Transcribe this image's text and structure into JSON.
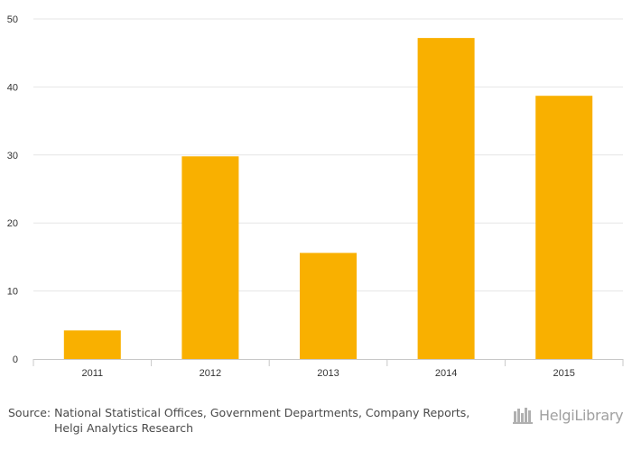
{
  "chart_data": {
    "type": "bar",
    "title": "",
    "xlabel": "",
    "ylabel": "",
    "categories": [
      "2011",
      "2012",
      "2013",
      "2014",
      "2015"
    ],
    "values": [
      4.2,
      29.8,
      15.6,
      47.2,
      38.7
    ],
    "ylim": [
      0,
      50
    ],
    "yticks": [
      "0",
      "10",
      "20",
      "30",
      "40",
      "50"
    ],
    "bar_color": "#f9b000",
    "grid": true
  },
  "footer": {
    "source_line1": "Source: National Statistical Offices, Government Departments, Company Reports,",
    "source_line2": "Helgi Analytics Research",
    "logo_text": "HelgiLibrary"
  }
}
